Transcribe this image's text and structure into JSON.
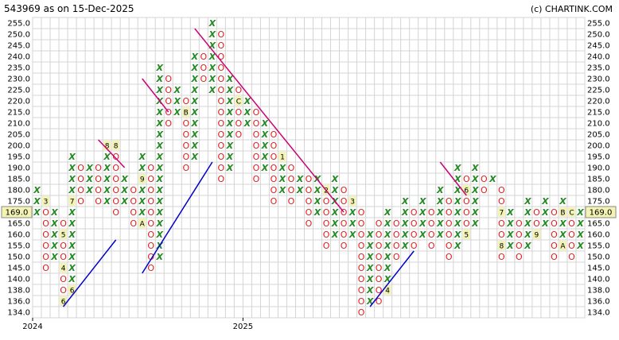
{
  "header": {
    "title": "543969 as on 15-Dec-2025",
    "credit": "(c) CHARTINK.COM"
  },
  "chart_data": {
    "type": "point-and-figure",
    "title": "543969 as on 15-Dec-2025",
    "yticks": [
      134.0,
      136.0,
      138.0,
      140.0,
      145.0,
      150.0,
      155.0,
      160.0,
      165.0,
      170.0,
      175.0,
      180.0,
      185.0,
      190.0,
      195.0,
      200.0,
      205.0,
      210.0,
      215.0,
      220.0,
      225.0,
      230.0,
      235.0,
      240.0,
      245.0,
      250.0,
      255.0
    ],
    "ylim": [
      134.0,
      255.0
    ],
    "current_price": "169.0",
    "current_level": 9,
    "x_labels": [
      {
        "label": "2024",
        "col": 0
      },
      {
        "label": "2025",
        "col": 24
      }
    ],
    "colors": {
      "x": "#228b22",
      "o": "#e41a1c",
      "grid": "#d4d4d4",
      "resistance": "#cc0077",
      "support": "#0000cc",
      "marker_bg": "#f3f3b4"
    },
    "columns": [
      {
        "type": "X",
        "from": 9,
        "to": 11
      },
      {
        "type": "O",
        "from": 4,
        "to": 10,
        "markers": {
          "10": "3"
        }
      },
      {
        "type": "X",
        "from": 5,
        "to": 9
      },
      {
        "type": "O",
        "from": 1,
        "to": 8,
        "markers": {
          "1": "6",
          "4": "4",
          "7": "5"
        }
      },
      {
        "type": "X",
        "from": 2,
        "to": 14,
        "markers": {
          "2": "6",
          "10": "7"
        }
      },
      {
        "type": "O",
        "from": 10,
        "to": 13
      },
      {
        "type": "X",
        "from": 11,
        "to": 13
      },
      {
        "type": "O",
        "from": 10,
        "to": 13
      },
      {
        "type": "X",
        "from": 10,
        "to": 15,
        "markers": {
          "15": "8"
        }
      },
      {
        "type": "O",
        "from": 9,
        "to": 15,
        "markers": {
          "15": "8"
        }
      },
      {
        "type": "X",
        "from": 10,
        "to": 12
      },
      {
        "type": "O",
        "from": 8,
        "to": 11
      },
      {
        "type": "X",
        "from": 8,
        "to": 14,
        "markers": {
          "8": "A",
          "12": "9"
        }
      },
      {
        "type": "O",
        "from": 4,
        "to": 13
      },
      {
        "type": "X",
        "from": 5,
        "to": 22
      },
      {
        "type": "O",
        "from": 17,
        "to": 21
      },
      {
        "type": "X",
        "from": 18,
        "to": 20
      },
      {
        "type": "O",
        "from": 13,
        "to": 19,
        "markers": {
          "18": "B"
        }
      },
      {
        "type": "X",
        "from": 14,
        "to": 23
      },
      {
        "type": "O",
        "from": 21,
        "to": 23
      },
      {
        "type": "X",
        "from": 20,
        "to": 26
      },
      {
        "type": "O",
        "from": 12,
        "to": 25
      },
      {
        "type": "X",
        "from": 13,
        "to": 21
      },
      {
        "type": "O",
        "from": 16,
        "to": 20,
        "markers": {
          "19": "C"
        }
      },
      {
        "type": "X",
        "from": 17,
        "to": 19
      },
      {
        "type": "O",
        "from": 12,
        "to": 18
      },
      {
        "type": "X",
        "from": 13,
        "to": 17
      },
      {
        "type": "O",
        "from": 10,
        "to": 16
      },
      {
        "type": "X",
        "from": 11,
        "to": 14,
        "markers": {
          "14": "1"
        }
      },
      {
        "type": "O",
        "from": 10,
        "to": 13
      },
      {
        "type": "X",
        "from": 11,
        "to": 12
      },
      {
        "type": "O",
        "from": 8,
        "to": 12
      },
      {
        "type": "X",
        "from": 9,
        "to": 12
      },
      {
        "type": "O",
        "from": 6,
        "to": 11,
        "markers": {
          "11": "2"
        }
      },
      {
        "type": "X",
        "from": 7,
        "to": 12
      },
      {
        "type": "O",
        "from": 6,
        "to": 11
      },
      {
        "type": "X",
        "from": 7,
        "to": 10,
        "markers": {
          "10": "3"
        }
      },
      {
        "type": "O",
        "from": 0,
        "to": 9
      },
      {
        "type": "X",
        "from": 1,
        "to": 7
      },
      {
        "type": "O",
        "from": 1,
        "to": 8
      },
      {
        "type": "X",
        "from": 2,
        "to": 9,
        "markers": {
          "2": "4"
        }
      },
      {
        "type": "O",
        "from": 5,
        "to": 8
      },
      {
        "type": "X",
        "from": 6,
        "to": 10
      },
      {
        "type": "O",
        "from": 6,
        "to": 9
      },
      {
        "type": "X",
        "from": 7,
        "to": 10
      },
      {
        "type": "O",
        "from": 6,
        "to": 9
      },
      {
        "type": "X",
        "from": 7,
        "to": 11
      },
      {
        "type": "O",
        "from": 5,
        "to": 10
      },
      {
        "type": "X",
        "from": 6,
        "to": 13
      },
      {
        "type": "O",
        "from": 7,
        "to": 12,
        "markers": {
          "7": "5",
          "11": "6"
        }
      },
      {
        "type": "X",
        "from": 8,
        "to": 13
      },
      {
        "type": "O",
        "from": 11,
        "to": 12
      },
      {
        "type": "X",
        "from": 12,
        "to": 12
      },
      {
        "type": "O",
        "from": 5,
        "to": 11,
        "markers": {
          "6": "8",
          "9": "7"
        }
      },
      {
        "type": "X",
        "from": 6,
        "to": 9
      },
      {
        "type": "O",
        "from": 5,
        "to": 8
      },
      {
        "type": "X",
        "from": 6,
        "to": 10
      },
      {
        "type": "O",
        "from": 7,
        "to": 9,
        "markers": {
          "7": "9"
        }
      },
      {
        "type": "X",
        "from": 8,
        "to": 10
      },
      {
        "type": "O",
        "from": 5,
        "to": 9
      },
      {
        "type": "X",
        "from": 6,
        "to": 10,
        "markers": {
          "6": "A",
          "9": "B"
        }
      },
      {
        "type": "O",
        "from": 5,
        "to": 9,
        "markers": {
          "9": "C"
        }
      },
      {
        "type": "X",
        "from": 6,
        "to": 9
      }
    ],
    "trendlines": [
      {
        "kind": "support",
        "from": [
          3.5,
          1
        ],
        "to": [
          9.5,
          7
        ]
      },
      {
        "kind": "support",
        "from": [
          12.5,
          4
        ],
        "to": [
          20.5,
          14
        ]
      },
      {
        "kind": "support",
        "from": [
          38.5,
          1
        ],
        "to": [
          43.5,
          6
        ]
      },
      {
        "kind": "resistance",
        "from": [
          7.5,
          16
        ],
        "to": [
          10.5,
          13.5
        ]
      },
      {
        "kind": "resistance",
        "from": [
          12.5,
          21.5
        ],
        "to": [
          15.5,
          18.5
        ]
      },
      {
        "kind": "resistance",
        "from": [
          18.5,
          26
        ],
        "to": [
          35.5,
          9.5
        ]
      },
      {
        "kind": "resistance",
        "from": [
          46.5,
          14
        ],
        "to": [
          49.5,
          11
        ]
      }
    ]
  }
}
